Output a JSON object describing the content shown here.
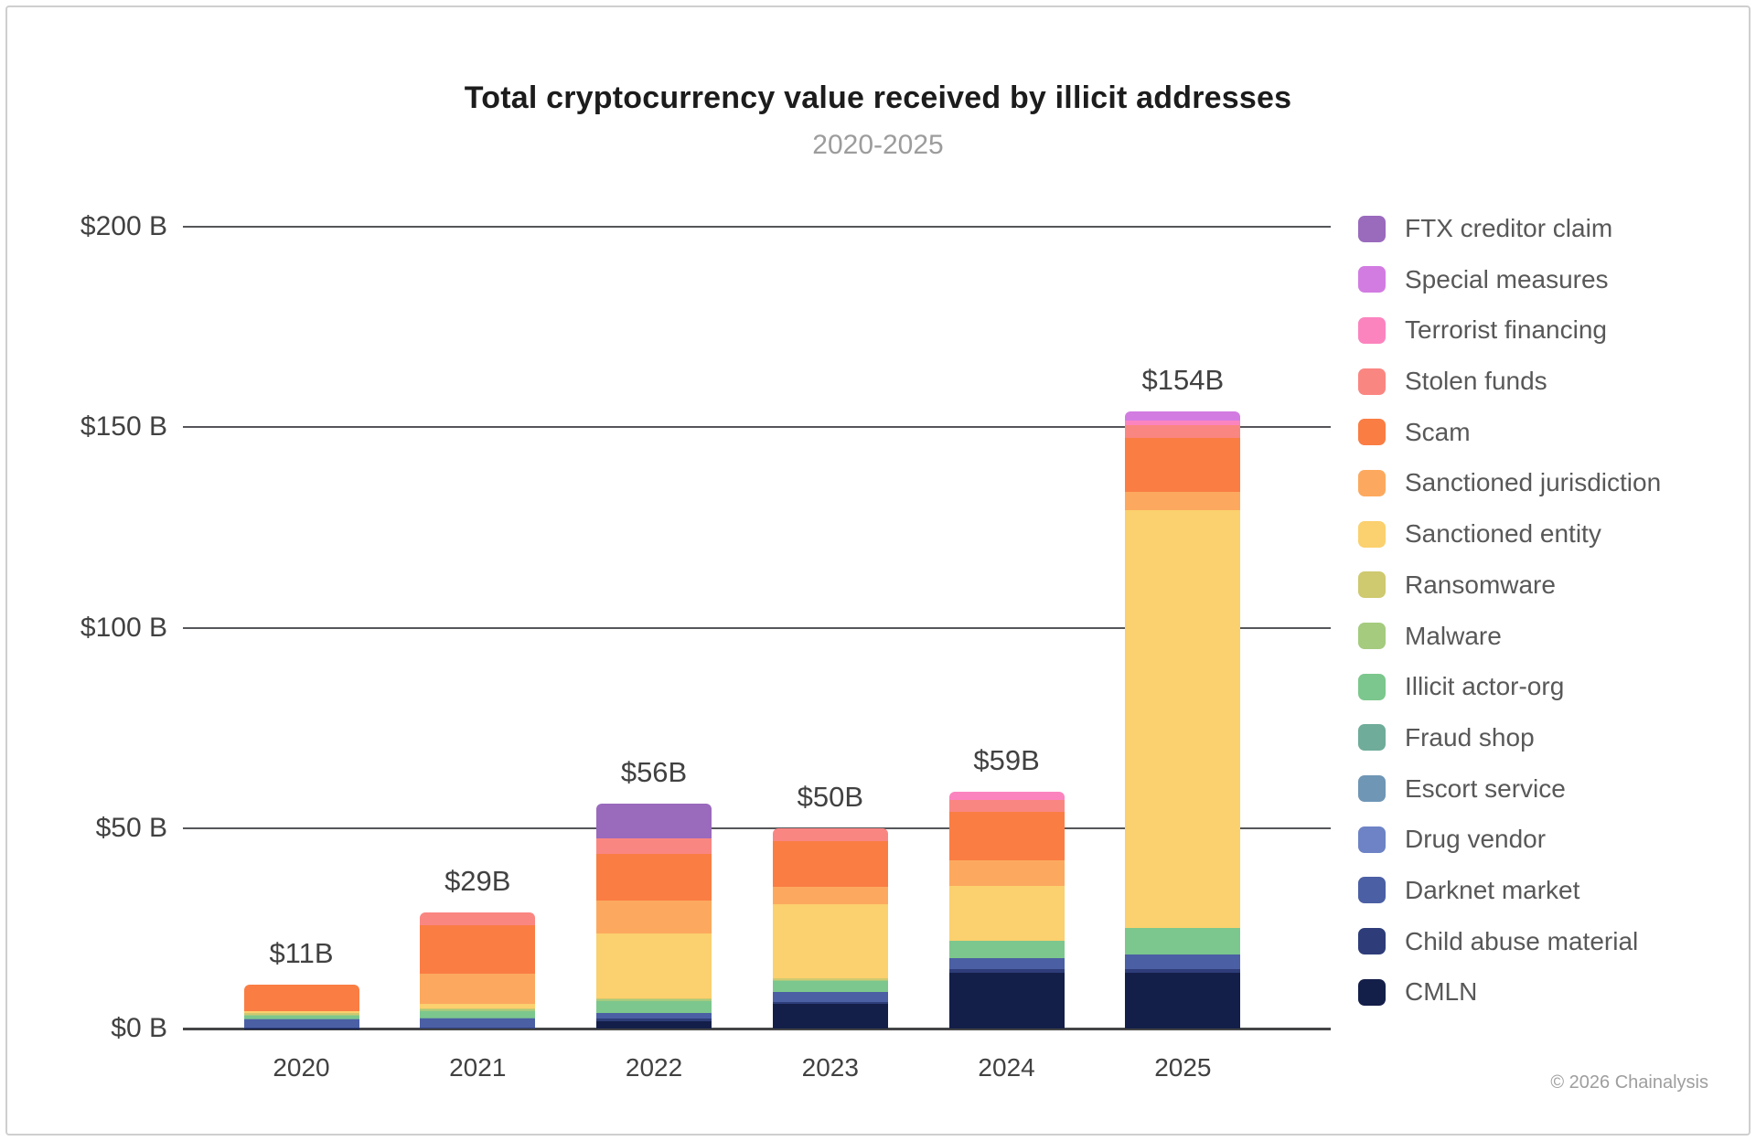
{
  "header": {
    "title": "Total cryptocurrency value received by illicit addresses",
    "subtitle": "2020-2025"
  },
  "footer": {
    "credit": "© 2026 Chainalysis"
  },
  "chart_data": {
    "type": "bar",
    "stacked": true,
    "title": "Total cryptocurrency value received by illicit addresses",
    "subtitle": "2020-2025",
    "xlabel": "",
    "ylabel": "",
    "ylim": [
      0,
      200
    ],
    "grid": true,
    "legend_position": "right",
    "categories": [
      "2020",
      "2021",
      "2022",
      "2023",
      "2024",
      "2025"
    ],
    "totals": [
      11,
      29,
      56,
      50,
      59,
      154
    ],
    "bar_total_labels": [
      "$11B",
      "$29B",
      "$56B",
      "$50B",
      "$59B",
      "$154B"
    ],
    "y_ticks": [
      {
        "label": "$200 B",
        "value": 200
      },
      {
        "label": "$150 B",
        "value": 150
      },
      {
        "label": "$100 B",
        "value": 100
      },
      {
        "label": "$50 B",
        "value": 50
      },
      {
        "label": "$0 B",
        "value": 0
      }
    ],
    "series": [
      {
        "name": "FTX creditor claim",
        "color": "#9a6abd",
        "values": [
          0,
          0,
          8.6,
          0,
          0,
          0
        ]
      },
      {
        "name": "Special measures",
        "color": "#d27ce2",
        "values": [
          0,
          0,
          0,
          0,
          0,
          2.3
        ]
      },
      {
        "name": "Terrorist financing",
        "color": "#fb84bf",
        "values": [
          0,
          0,
          0,
          0,
          2.0,
          1.1
        ]
      },
      {
        "name": "Stolen funds",
        "color": "#fa8682",
        "values": [
          0,
          3.2,
          3.8,
          3.3,
          2.9,
          3.3
        ]
      },
      {
        "name": "Scam",
        "color": "#fa7d44",
        "values": [
          6.6,
          12.0,
          11.7,
          11.4,
          12.1,
          13.4
        ]
      },
      {
        "name": "Sanctioned jurisdiction",
        "color": "#fca95f",
        "values": [
          0,
          7.6,
          8.2,
          4.2,
          6.4,
          4.5
        ]
      },
      {
        "name": "Sanctioned entity",
        "color": "#fbd06e",
        "values": [
          0.5,
          1.2,
          16.1,
          18.5,
          13.6,
          104.3
        ]
      },
      {
        "name": "Ransomware",
        "color": "#cfc96f",
        "values": [
          0.4,
          0.3,
          0.4,
          0.5,
          0,
          0
        ]
      },
      {
        "name": "Malware",
        "color": "#a5cb7f",
        "values": [
          0.4,
          0.4,
          0.3,
          0.3,
          0,
          0
        ]
      },
      {
        "name": "Illicit actor-org",
        "color": "#7cc78d",
        "values": [
          0.6,
          1.6,
          3.0,
          2.6,
          4.5,
          6.7
        ]
      },
      {
        "name": "Fraud shop",
        "color": "#6fac99",
        "values": [
          0.2,
          0.2,
          0,
          0,
          0,
          0
        ]
      },
      {
        "name": "Escort service",
        "color": "#6f96b5",
        "values": [
          0,
          0,
          0,
          0,
          0,
          0
        ]
      },
      {
        "name": "Drug vendor",
        "color": "#6d83c5",
        "values": [
          0,
          0,
          0,
          0,
          0,
          0
        ]
      },
      {
        "name": "Darknet market",
        "color": "#4b5fa4",
        "values": [
          2.0,
          2.3,
          1.4,
          2.5,
          2.7,
          3.6
        ]
      },
      {
        "name": "Child abuse material",
        "color": "#2e3d79",
        "values": [
          0.2,
          0.2,
          0.6,
          0.6,
          0.8,
          0.8
        ]
      },
      {
        "name": "CMLN",
        "color": "#141f49",
        "values": [
          0.1,
          0,
          1.9,
          6.1,
          14.0,
          14.0
        ]
      }
    ]
  }
}
